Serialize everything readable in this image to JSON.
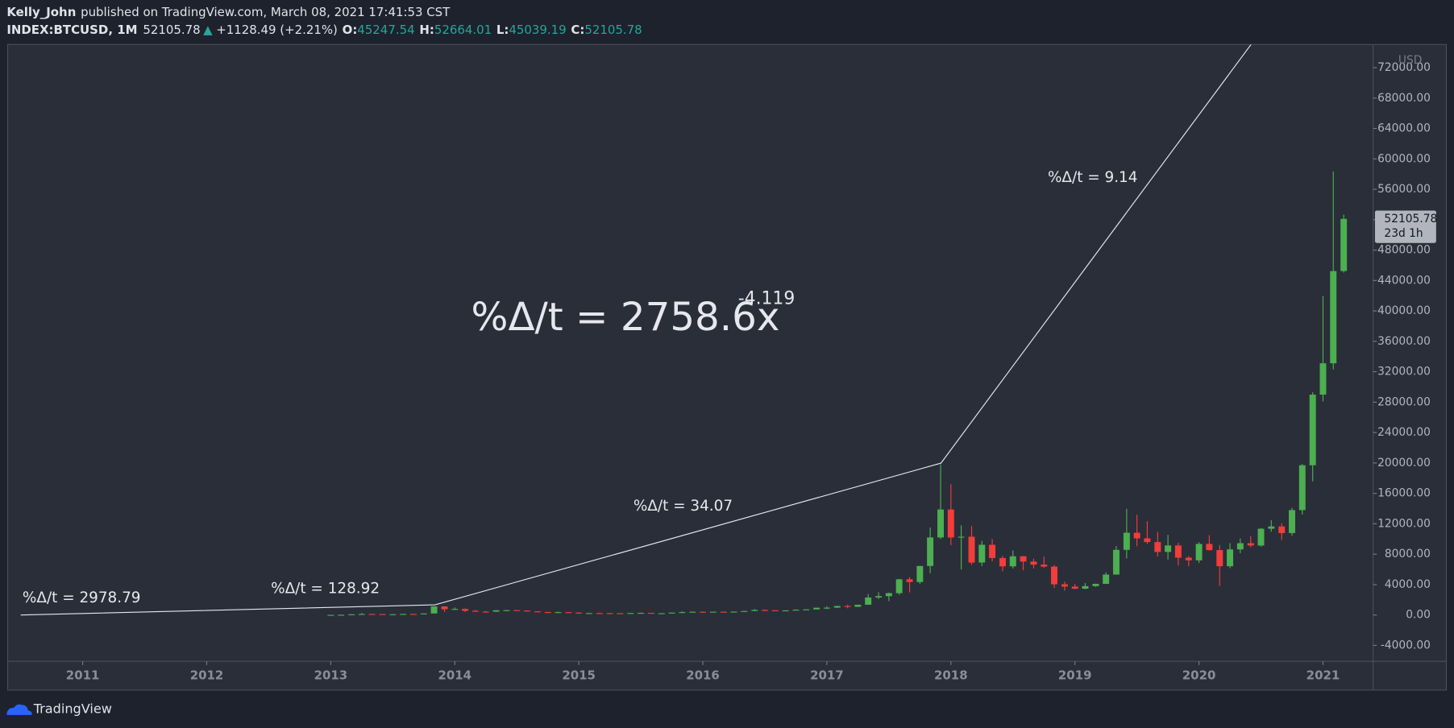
{
  "header": {
    "author": "Kelly_John",
    "published": "published on TradingView.com, March 08, 2021 17:41:53 CST",
    "symbol": "INDEX:BTCUSD, 1M",
    "last": "52105.78",
    "arrow": "▲",
    "change": "+1128.49 (+2.21%)",
    "o_label": "O:",
    "o": "45247.54",
    "h_label": "H:",
    "h": "52664.01",
    "l_label": "L:",
    "l": "45039.19",
    "c_label": "C:",
    "c": "52105.78"
  },
  "chart_data": {
    "type": "candlestick",
    "currency": "USD",
    "up_color": "#4caf50",
    "down_color": "#f23d3a",
    "xlim": [
      2010.395,
      2021.404
    ],
    "ylim": [
      -6090,
      75050
    ],
    "xticks": [
      2011,
      2012,
      2013,
      2014,
      2015,
      2016,
      2017,
      2018,
      2019,
      2020,
      2021
    ],
    "yticks": [
      {
        "value": -4000,
        "label": "-4000.00"
      },
      {
        "value": 0,
        "label": "0.00"
      },
      {
        "value": 4000,
        "label": "4000.00"
      },
      {
        "value": 8000,
        "label": "8000.00"
      },
      {
        "value": 12000,
        "label": "12000.00"
      },
      {
        "value": 16000,
        "label": "16000.00"
      },
      {
        "value": 20000,
        "label": "20000.00"
      },
      {
        "value": 24000,
        "label": "24000.00"
      },
      {
        "value": 28000,
        "label": "28000.00"
      },
      {
        "value": 32000,
        "label": "32000.00"
      },
      {
        "value": 36000,
        "label": "36000.00"
      },
      {
        "value": 40000,
        "label": "40000.00"
      },
      {
        "value": 44000,
        "label": "44000.00"
      },
      {
        "value": 48000,
        "label": "48000.00"
      },
      {
        "value": 52000,
        "label": "52000.00"
      },
      {
        "value": 56000,
        "label": "56000.00"
      },
      {
        "value": 60000,
        "label": "60000.00"
      },
      {
        "value": 64000,
        "label": "64000.00"
      },
      {
        "value": 68000,
        "label": "68000.00"
      },
      {
        "value": 72000,
        "label": "72000.00"
      }
    ],
    "x": [
      2013,
      2013.083,
      2013.167,
      2013.25,
      2013.333,
      2013.417,
      2013.5,
      2013.583,
      2013.667,
      2013.75,
      2013.833,
      2013.917,
      2014,
      2014.083,
      2014.167,
      2014.25,
      2014.333,
      2014.417,
      2014.5,
      2014.583,
      2014.667,
      2014.75,
      2014.833,
      2014.917,
      2015,
      2015.083,
      2015.167,
      2015.25,
      2015.333,
      2015.417,
      2015.5,
      2015.583,
      2015.667,
      2015.75,
      2015.833,
      2015.917,
      2016,
      2016.083,
      2016.167,
      2016.25,
      2016.333,
      2016.417,
      2016.5,
      2016.583,
      2016.667,
      2016.75,
      2016.833,
      2016.917,
      2017,
      2017.083,
      2017.167,
      2017.25,
      2017.333,
      2017.417,
      2017.5,
      2017.583,
      2017.667,
      2017.75,
      2017.833,
      2017.917,
      2018,
      2018.083,
      2018.167,
      2018.25,
      2018.333,
      2018.417,
      2018.5,
      2018.583,
      2018.667,
      2018.75,
      2018.833,
      2018.917,
      2019,
      2019.083,
      2019.167,
      2019.25,
      2019.333,
      2019.417,
      2019.5,
      2019.583,
      2019.667,
      2019.75,
      2019.833,
      2019.917,
      2020,
      2020.083,
      2020.167,
      2020.25,
      2020.333,
      2020.417,
      2020.5,
      2020.583,
      2020.667,
      2020.75,
      2020.833,
      2020.917,
      2021,
      2021.083,
      2021.167
    ],
    "ohlc": [
      [
        13.5,
        20.4,
        13.2,
        20.4
      ],
      [
        20.4,
        34,
        19.5,
        33.4
      ],
      [
        33.4,
        95,
        33,
        93
      ],
      [
        93,
        266,
        50,
        139
      ],
      [
        139,
        140,
        80,
        129
      ],
      [
        129,
        130,
        88,
        97
      ],
      [
        97,
        110,
        65,
        106
      ],
      [
        106,
        142,
        101,
        141
      ],
      [
        141,
        147,
        118,
        133
      ],
      [
        133,
        215,
        105,
        204
      ],
      [
        204,
        1163,
        200,
        1130
      ],
      [
        1130,
        1150,
        400,
        755
      ],
      [
        755,
        1000,
        740,
        800
      ],
      [
        800,
        860,
        400,
        550
      ],
      [
        550,
        700,
        440,
        445
      ],
      [
        445,
        540,
        340,
        440
      ],
      [
        440,
        630,
        420,
        625
      ],
      [
        625,
        680,
        555,
        640
      ],
      [
        640,
        655,
        565,
        585
      ],
      [
        585,
        600,
        440,
        480
      ],
      [
        480,
        495,
        360,
        385
      ],
      [
        385,
        415,
        275,
        338
      ],
      [
        338,
        450,
        325,
        375
      ],
      [
        375,
        385,
        300,
        320
      ],
      [
        320,
        320,
        152,
        218
      ],
      [
        218,
        265,
        212,
        254
      ],
      [
        254,
        300,
        235,
        244
      ],
      [
        244,
        260,
        210,
        236
      ],
      [
        236,
        247,
        225,
        230
      ],
      [
        230,
        268,
        222,
        263
      ],
      [
        263,
        318,
        252,
        285
      ],
      [
        285,
        285,
        198,
        230
      ],
      [
        230,
        243,
        225,
        236
      ],
      [
        236,
        335,
        236,
        312
      ],
      [
        312,
        500,
        290,
        378
      ],
      [
        378,
        466,
        345,
        430
      ],
      [
        430,
        463,
        350,
        369
      ],
      [
        369,
        444,
        365,
        437
      ],
      [
        437,
        439,
        394,
        416
      ],
      [
        416,
        468,
        412,
        448
      ],
      [
        448,
        550,
        444,
        531
      ],
      [
        531,
        780,
        520,
        670
      ],
      [
        670,
        704,
        520,
        624
      ],
      [
        624,
        627,
        533,
        575
      ],
      [
        575,
        630,
        570,
        609
      ],
      [
        609,
        740,
        605,
        700
      ],
      [
        700,
        752,
        686,
        742
      ],
      [
        742,
        975,
        741,
        963
      ],
      [
        963,
        1153,
        755,
        970
      ],
      [
        970,
        1200,
        911,
        1190
      ],
      [
        1190,
        1350,
        890,
        1080
      ],
      [
        1080,
        1350,
        1060,
        1350
      ],
      [
        1350,
        2760,
        1350,
        2300
      ],
      [
        2300,
        3000,
        2100,
        2480
      ],
      [
        2480,
        2950,
        1830,
        2875
      ],
      [
        2875,
        4750,
        2670,
        4700
      ],
      [
        4700,
        4980,
        2980,
        4340
      ],
      [
        4340,
        6470,
        4100,
        6450
      ],
      [
        6450,
        11500,
        5500,
        10200
      ],
      [
        10200,
        19800,
        10000,
        13880
      ],
      [
        13880,
        17200,
        9200,
        10200
      ],
      [
        10200,
        11800,
        6000,
        10300
      ],
      [
        10300,
        11700,
        6600,
        6900
      ],
      [
        6900,
        9750,
        6450,
        9240
      ],
      [
        9240,
        9990,
        7050,
        7500
      ],
      [
        7500,
        7780,
        5760,
        6400
      ],
      [
        6400,
        8500,
        6120,
        7730
      ],
      [
        7730,
        7760,
        5880,
        7030
      ],
      [
        7030,
        7400,
        6120,
        6630
      ],
      [
        6630,
        7680,
        6200,
        6370
      ],
      [
        6370,
        6580,
        3550,
        4040
      ],
      [
        4040,
        4400,
        3200,
        3740
      ],
      [
        3740,
        4080,
        3400,
        3460
      ],
      [
        3460,
        4200,
        3390,
        3800
      ],
      [
        3800,
        4120,
        3710,
        4100
      ],
      [
        4100,
        5620,
        4070,
        5320
      ],
      [
        5320,
        9080,
        5300,
        8570
      ],
      [
        8570,
        13970,
        7450,
        10820
      ],
      [
        10820,
        13180,
        9050,
        10080
      ],
      [
        10080,
        12340,
        9350,
        9600
      ],
      [
        9600,
        10950,
        7700,
        8300
      ],
      [
        8300,
        10540,
        7300,
        9150
      ],
      [
        9150,
        9500,
        6510,
        7540
      ],
      [
        7540,
        7750,
        6420,
        7190
      ],
      [
        7190,
        9580,
        6850,
        9350
      ],
      [
        9350,
        10500,
        8460,
        8540
      ],
      [
        8540,
        9200,
        3850,
        6420
      ],
      [
        6420,
        9450,
        6160,
        8630
      ],
      [
        8630,
        10070,
        8130,
        9450
      ],
      [
        9450,
        10400,
        8900,
        9140
      ],
      [
        9140,
        11440,
        8990,
        11350
      ],
      [
        11350,
        12480,
        10950,
        11650
      ],
      [
        11650,
        12070,
        9880,
        10780
      ],
      [
        10780,
        14100,
        10430,
        13800
      ],
      [
        13800,
        19860,
        13230,
        19700
      ],
      [
        19700,
        29300,
        17580,
        28990
      ],
      [
        28990,
        41970,
        28100,
        33110
      ],
      [
        33110,
        58350,
        32300,
        45240
      ],
      [
        45247.54,
        52664.01,
        45039.19,
        52105.78
      ]
    ],
    "last_price": 52105.78,
    "countdown": "23d 1h",
    "trend_line": {
      "x": [
        2010.5,
        2013.84,
        2017.92,
        2020.42
      ],
      "y": [
        0,
        1340,
        19980,
        75050
      ]
    },
    "annotations": [
      "%Δ/t = 2978.79",
      "%Δ/t = 128.92",
      "%Δ/t = 34.07",
      "%Δ/t = 9.14"
    ],
    "equation": "%Δ/t = 2758.6x",
    "exponent": "-4.119"
  },
  "footer": {
    "brand": "TradingView"
  }
}
